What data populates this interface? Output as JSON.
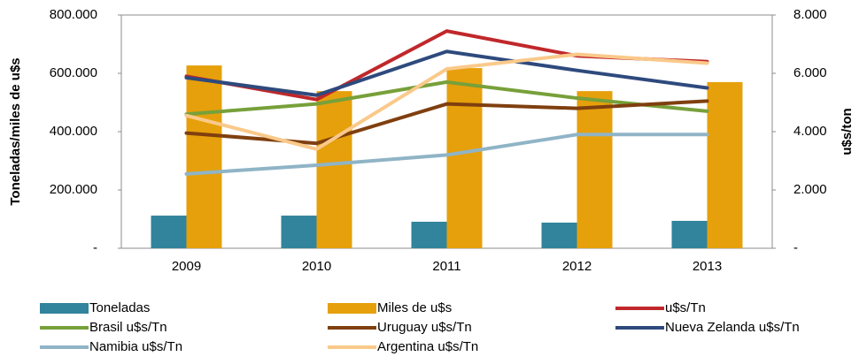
{
  "chart_data": {
    "type": "bar",
    "categories": [
      "2009",
      "2010",
      "2011",
      "2012",
      "2013"
    ],
    "y_label": "Toneladas/miles de u$s",
    "y2_label": "u$s/ton",
    "ylim": [
      0,
      800000
    ],
    "yticks": [
      {
        "value": 0,
        "label": "-"
      },
      {
        "value": 200000,
        "label": "200.000"
      },
      {
        "value": 400000,
        "label": "400.000"
      },
      {
        "value": 600000,
        "label": "600.000"
      },
      {
        "value": 800000,
        "label": "800.000"
      }
    ],
    "y2lim": [
      0,
      8000
    ],
    "y2ticks": [
      {
        "value": 0,
        "label": "-"
      },
      {
        "value": 2000,
        "label": "2.000"
      },
      {
        "value": 4000,
        "label": "4.000"
      },
      {
        "value": 6000,
        "label": "6.000"
      },
      {
        "value": 8000,
        "label": "8.000"
      }
    ],
    "grid": false,
    "legend": "bottom",
    "series": [
      {
        "name": "Toneladas",
        "type": "bar",
        "color": "#31849b",
        "values": [
          112000,
          112000,
          91000,
          88000,
          94000
        ]
      },
      {
        "name": "Miles de u$s",
        "type": "bar",
        "color": "#e6a00b",
        "values": [
          627000,
          539000,
          618000,
          539000,
          570000
        ]
      },
      {
        "name": "u$s/Tn",
        "type": "line",
        "axis": "y2",
        "color": "#c0282b",
        "values": [
          5900,
          5100,
          7450,
          6600,
          6400
        ]
      },
      {
        "name": "Brasil u$s/Tn",
        "type": "line",
        "axis": "y2",
        "color": "#77a03a",
        "values": [
          4600,
          4950,
          5700,
          5150,
          4700
        ]
      },
      {
        "name": "Uruguay u$s/Tn",
        "type": "line",
        "axis": "y2",
        "color": "#7f3f0f",
        "values": [
          3950,
          3600,
          4950,
          4800,
          5050
        ]
      },
      {
        "name": "Nueva Zelanda u$s/Tn",
        "type": "line",
        "axis": "y2",
        "color": "#2e4a7d",
        "values": [
          5850,
          5250,
          6750,
          6100,
          5500
        ]
      },
      {
        "name": "Namibia u$s/Tn",
        "type": "line",
        "axis": "y2",
        "color": "#8fb4c6",
        "values": [
          2550,
          2850,
          3200,
          3900,
          3900
        ]
      },
      {
        "name": "Argentina u$s/Tn",
        "type": "line",
        "axis": "y2",
        "color": "#fac98a",
        "values": [
          4550,
          3400,
          6150,
          6650,
          6350
        ]
      }
    ]
  }
}
